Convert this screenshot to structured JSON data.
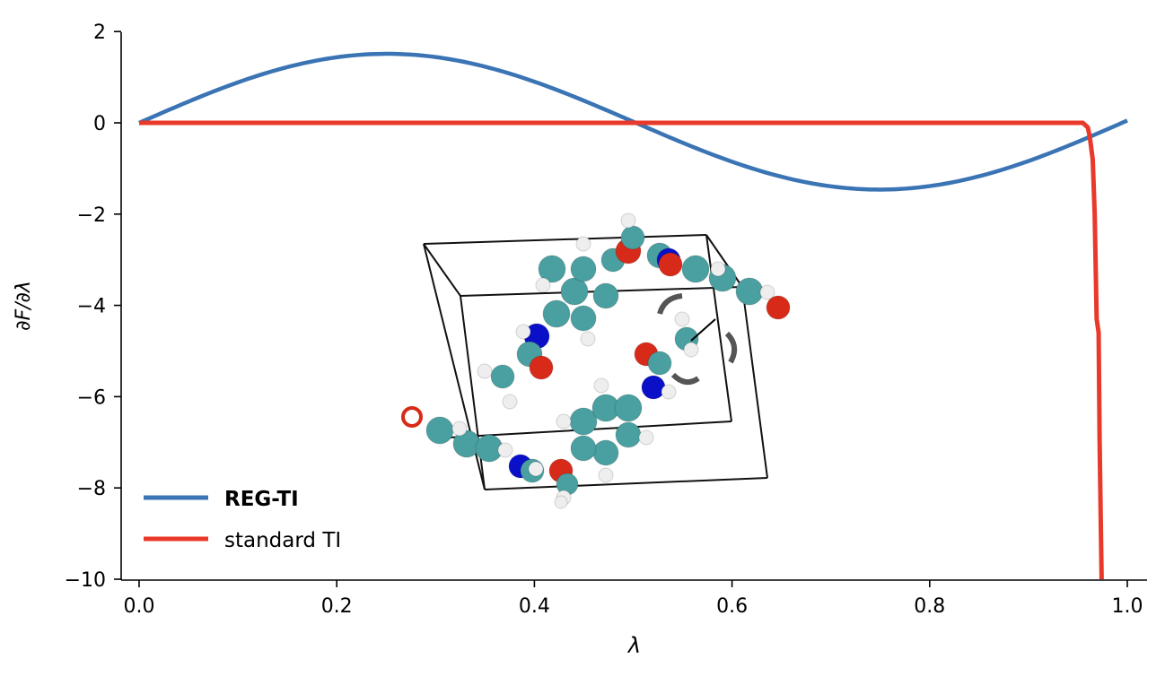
{
  "chart_data": {
    "type": "line",
    "title": "",
    "xlabel": "λ",
    "ylabel": "∂F/∂λ",
    "xlim": [
      -0.02,
      1.02
    ],
    "ylim": [
      -10,
      2
    ],
    "xticks": [
      0.0,
      0.2,
      0.4,
      0.6,
      0.8,
      1.0
    ],
    "xtick_labels": [
      "0.0",
      "0.2",
      "0.4",
      "0.6",
      "0.8",
      "1.0"
    ],
    "yticks": [
      2,
      0,
      -2,
      -4,
      -6,
      -8,
      -10
    ],
    "ytick_labels": [
      "2",
      "0",
      "−2",
      "−4",
      "−6",
      "−8",
      "−10"
    ],
    "grid": false,
    "legend_position": "bottom-left",
    "series": [
      {
        "name": "REG-TI",
        "color": "#3a74b4",
        "x": [
          0,
          0.05,
          0.1,
          0.15,
          0.2,
          0.25,
          0.3,
          0.35,
          0.4,
          0.45,
          0.5,
          0.55,
          0.6,
          0.65,
          0.7,
          0.75,
          0.8,
          0.85,
          0.9,
          0.95,
          1.0
        ],
        "y": [
          0,
          0.46,
          0.88,
          1.21,
          1.43,
          1.5,
          1.43,
          1.21,
          0.88,
          0.46,
          0,
          -0.46,
          -0.88,
          -1.21,
          -1.43,
          -1.5,
          -1.43,
          -1.21,
          -0.88,
          -0.46,
          0.05
        ]
      },
      {
        "name": "standard TI",
        "color": "#e8392a",
        "x": [
          0,
          0.955,
          0.96,
          0.962,
          0.965,
          0.967,
          0.969,
          0.971,
          0.972,
          0.974
        ],
        "y": [
          0,
          0,
          -0.1,
          -0.3,
          -0.8,
          -2,
          -4.3,
          -4.6,
          -7,
          -10
        ]
      }
    ],
    "inset": "molecular structure in simulation box"
  }
}
